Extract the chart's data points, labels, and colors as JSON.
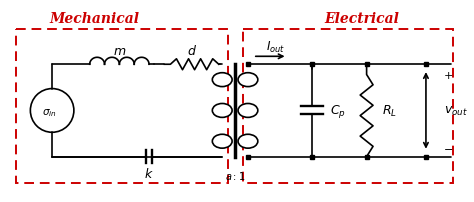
{
  "title_mech": "Mechanical",
  "title_elec": "Electrical",
  "red_color": "#cc0000",
  "black_color": "#000000",
  "bg_color": "#ffffff",
  "fig_width": 4.74,
  "fig_height": 2.03,
  "dpi": 100
}
